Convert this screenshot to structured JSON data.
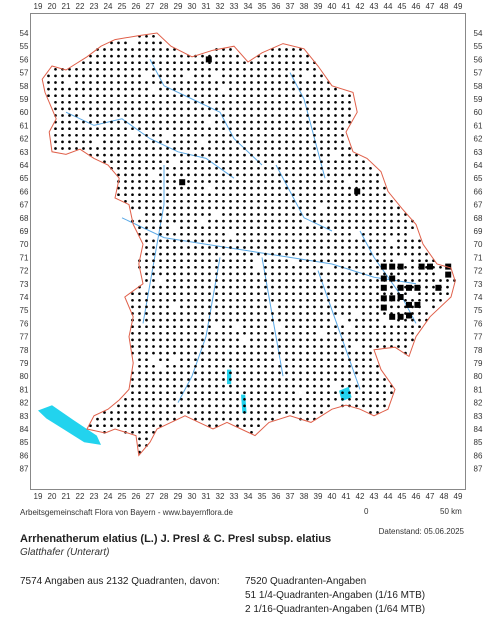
{
  "map": {
    "col_labels": [
      "19",
      "20",
      "21",
      "22",
      "23",
      "24",
      "25",
      "26",
      "27",
      "28",
      "29",
      "30",
      "31",
      "32",
      "33",
      "34",
      "35",
      "36",
      "37",
      "38",
      "39",
      "40",
      "41",
      "42",
      "43",
      "44",
      "45",
      "46",
      "47",
      "48",
      "49"
    ],
    "row_labels": [
      "54",
      "55",
      "56",
      "57",
      "58",
      "59",
      "60",
      "61",
      "62",
      "63",
      "64",
      "65",
      "66",
      "67",
      "68",
      "69",
      "70",
      "71",
      "72",
      "73",
      "74",
      "75",
      "76",
      "77",
      "78",
      "79",
      "80",
      "81",
      "82",
      "83",
      "84",
      "85",
      "86",
      "87"
    ],
    "colors": {
      "border": "#e0604a",
      "rivers": "#5aa9e6",
      "lakes": "#22d3ee",
      "dots": "#000000"
    },
    "legend_symbols": [
      "small-dot: 1/4 or 1/16 quadrant record",
      "filled-square: full quadrant record"
    ]
  },
  "scale_bar": {
    "start": "0",
    "end": "50 km"
  },
  "credit": "Arbeitsgemeinschaft Flora von Bayern - www.bayernflora.de",
  "date": "Datenstand: 05.06.2025",
  "species": {
    "name": "Arrhenatherum elatius (L.) J. Presl & C. Presl subsp. elatius",
    "common": "Glatthafer (Unterart)"
  },
  "stats": {
    "total": "7574 Angaben aus 2132 Quadranten, davon:",
    "q1": "7520 Quadranten-Angaben",
    "q2": "51 1/4-Quadranten-Angaben (1/16 MTB)",
    "q3": "2 1/16-Quadranten-Angaben (1/64 MTB)"
  }
}
